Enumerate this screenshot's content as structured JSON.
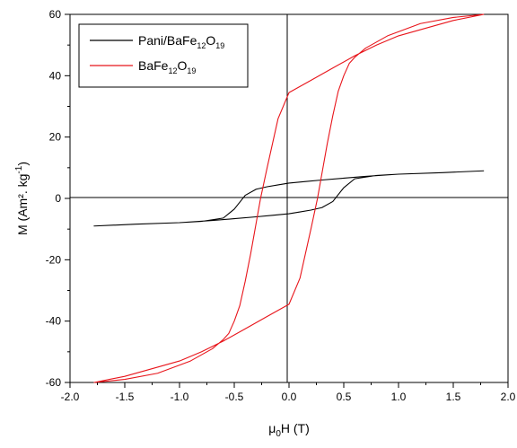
{
  "chart_data": {
    "type": "line",
    "xlabel": "μ0H (T)",
    "ylabel": "M (Am². kg-1)",
    "xlim": [
      -2.0,
      2.0
    ],
    "ylim": [
      -60,
      60
    ],
    "xticks": [
      "-2.0",
      "-1.5",
      "-1.0",
      "-0.5",
      "0.0",
      "0.5",
      "1.0",
      "1.5",
      "2.0"
    ],
    "yticks": [
      "-60",
      "-40",
      "-20",
      "0",
      "20",
      "40",
      "60"
    ],
    "legend_position": "top-left",
    "series": [
      {
        "name": "Pani/BaFe12O19",
        "color": "#000000",
        "x": [
          1.78,
          1.4,
          1.0,
          0.7,
          0.5,
          0.3,
          0.15,
          0.0,
          -0.1,
          -0.2,
          -0.3,
          -0.4,
          -0.5,
          -0.6,
          -0.8,
          -1.0,
          -1.4,
          -1.78,
          -1.4,
          -1.0,
          -0.7,
          -0.5,
          -0.3,
          -0.15,
          0.0,
          0.1,
          0.2,
          0.3,
          0.4,
          0.5,
          0.6,
          0.8,
          1.0,
          1.4,
          1.78
        ],
        "y": [
          9.0,
          8.4,
          7.9,
          7.2,
          6.6,
          6.0,
          5.5,
          5.0,
          4.4,
          3.8,
          3.0,
          1.0,
          -3.5,
          -6.4,
          -7.5,
          -7.9,
          -8.4,
          -9.0,
          -8.4,
          -7.9,
          -7.2,
          -6.6,
          -6.0,
          -5.5,
          -5.0,
          -4.4,
          -3.8,
          -3.0,
          -1.0,
          3.5,
          6.4,
          7.5,
          7.9,
          8.4,
          9.0
        ]
      },
      {
        "name": "BaFe12O19",
        "color": "#e8151b",
        "x": [
          1.78,
          1.5,
          1.2,
          1.0,
          0.8,
          0.6,
          0.4,
          0.2,
          0.0,
          -0.1,
          -0.2,
          -0.26,
          -0.3,
          -0.35,
          -0.4,
          -0.45,
          -0.5,
          -0.55,
          -0.6,
          -0.7,
          -0.9,
          -1.2,
          -1.5,
          -1.78,
          -1.5,
          -1.2,
          -1.0,
          -0.8,
          -0.6,
          -0.4,
          -0.2,
          0.0,
          0.1,
          0.2,
          0.26,
          0.3,
          0.35,
          0.4,
          0.45,
          0.5,
          0.55,
          0.6,
          0.7,
          0.9,
          1.2,
          1.5,
          1.78
        ],
        "y": [
          60,
          58,
          55,
          53,
          50,
          46.5,
          42.5,
          38.5,
          34.5,
          26,
          10,
          0,
          -8,
          -18,
          -27,
          -35,
          -40,
          -44,
          -46,
          -49,
          -53,
          -57,
          -59,
          -60,
          -58,
          -55,
          -53,
          -50,
          -46.5,
          -42.5,
          -38.5,
          -34.5,
          -26,
          -10,
          0,
          8,
          18,
          27,
          35,
          40,
          44,
          46,
          49,
          53,
          57,
          59,
          60
        ]
      }
    ]
  }
}
